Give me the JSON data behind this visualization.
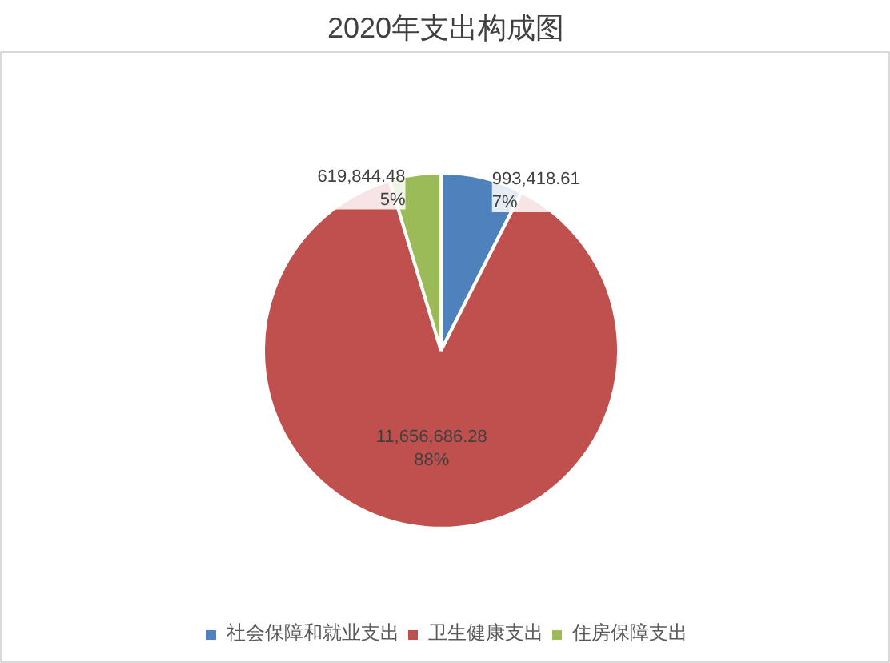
{
  "chart_data": {
    "type": "pie",
    "title": "2020年支出构成图",
    "categories": [
      "社会保障和就业支出",
      "卫生健康支出",
      "住房保障支出"
    ],
    "values": [
      993418.61,
      11656686.28,
      619844.48
    ],
    "colors": [
      "#4f81bd",
      "#c0504d",
      "#9bbb59"
    ],
    "value_labels": [
      "993,418.61\n7%",
      "11,656,686.28\n88%",
      "619,844.48\n5%"
    ],
    "legend": "bottom"
  }
}
